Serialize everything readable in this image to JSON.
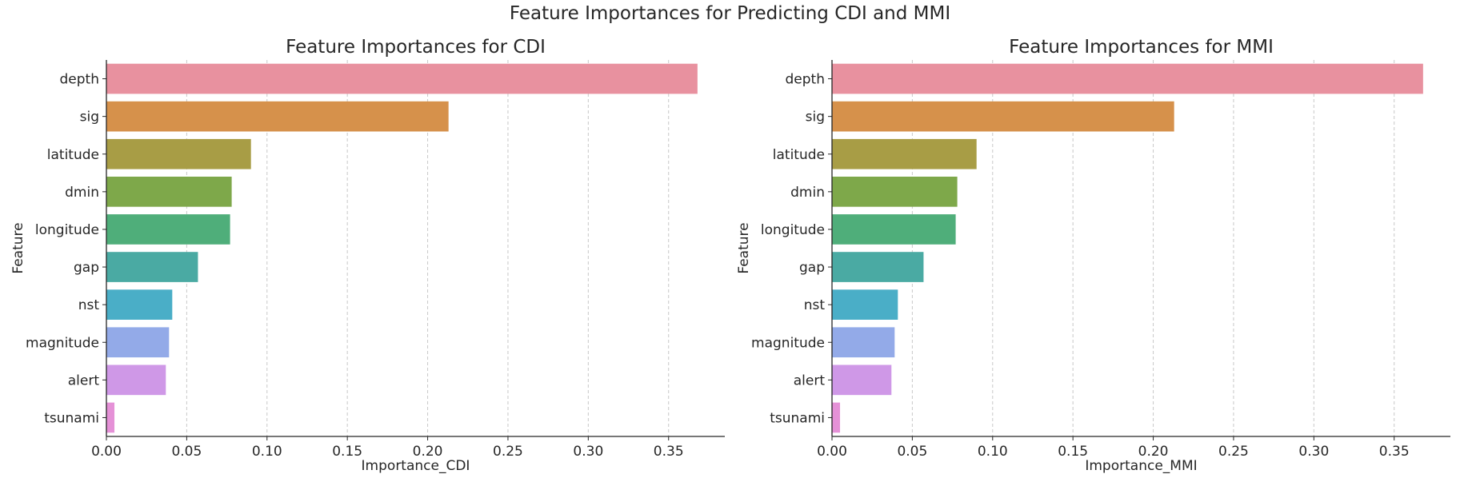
{
  "figure": {
    "suptitle": "Feature Importances for Predicting CDI and MMI"
  },
  "chart_data": [
    {
      "type": "bar",
      "orientation": "horizontal",
      "title": "Feature Importances for CDI",
      "xlabel": "Importance_CDI",
      "ylabel": "Feature",
      "categories": [
        "depth",
        "sig",
        "latitude",
        "dmin",
        "longitude",
        "gap",
        "nst",
        "magnitude",
        "alert",
        "tsunami"
      ],
      "values": [
        0.368,
        0.213,
        0.09,
        0.078,
        0.077,
        0.057,
        0.041,
        0.039,
        0.037,
        0.005
      ],
      "xlim": [
        0.0,
        0.385
      ],
      "xticks": [
        "0.00",
        "0.05",
        "0.10",
        "0.15",
        "0.20",
        "0.25",
        "0.30",
        "0.35"
      ],
      "xtick_values": [
        0.0,
        0.05,
        0.1,
        0.15,
        0.2,
        0.25,
        0.3,
        0.35
      ],
      "grid": "x-dashed",
      "colors": [
        "#e8919f",
        "#d6914b",
        "#a89d45",
        "#7ea84a",
        "#4fae7a",
        "#4aaaa3",
        "#4aaec7",
        "#93aae8",
        "#cf98e7",
        "#e591d7"
      ]
    },
    {
      "type": "bar",
      "orientation": "horizontal",
      "title": "Feature Importances for MMI",
      "xlabel": "Importance_MMI",
      "ylabel": "Feature",
      "categories": [
        "depth",
        "sig",
        "latitude",
        "dmin",
        "longitude",
        "gap",
        "nst",
        "magnitude",
        "alert",
        "tsunami"
      ],
      "values": [
        0.368,
        0.213,
        0.09,
        0.078,
        0.077,
        0.057,
        0.041,
        0.039,
        0.037,
        0.005
      ],
      "xlim": [
        0.0,
        0.385
      ],
      "xticks": [
        "0.00",
        "0.05",
        "0.10",
        "0.15",
        "0.20",
        "0.25",
        "0.30",
        "0.35"
      ],
      "xtick_values": [
        0.0,
        0.05,
        0.1,
        0.15,
        0.2,
        0.25,
        0.3,
        0.35
      ],
      "grid": "x-dashed",
      "colors": [
        "#e8919f",
        "#d6914b",
        "#a89d45",
        "#7ea84a",
        "#4fae7a",
        "#4aaaa3",
        "#4aaec7",
        "#93aae8",
        "#cf98e7",
        "#e591d7"
      ]
    }
  ]
}
